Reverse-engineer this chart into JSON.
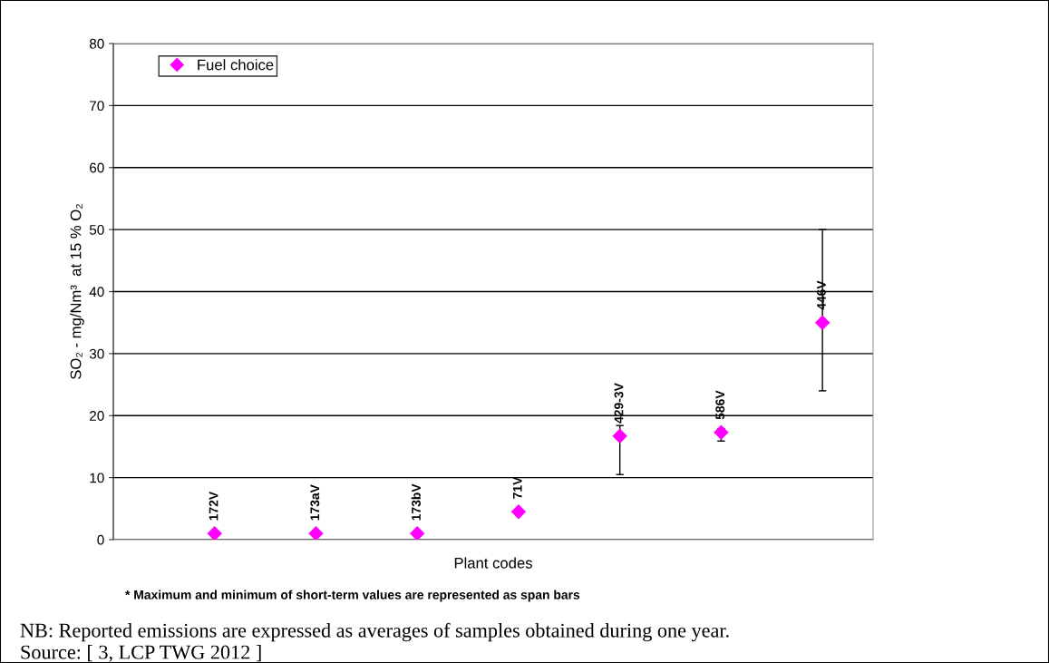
{
  "chart_data": {
    "type": "scatter",
    "ylabel": "SO₂ - mg/Nm³  at 15 % O₂",
    "xlabel": "Plant codes",
    "categories": [
      "172V",
      "173aV",
      "173bV",
      "71V",
      "429-3V",
      "586V",
      "446V"
    ],
    "series": [
      {
        "name": "Fuel choice",
        "color": "#ff00ff",
        "values": [
          1.0,
          1.0,
          1.0,
          4.5,
          16.7,
          17.3,
          35.0
        ],
        "errors": [
          null,
          null,
          null,
          null,
          [
            10.5,
            18.4
          ],
          [
            15.9,
            17.9
          ],
          [
            24.0,
            50.0
          ]
        ]
      }
    ],
    "marker": "diamond",
    "ylim": [
      0,
      80
    ],
    "yticks": [
      0,
      10,
      20,
      30,
      40,
      50,
      60,
      70,
      80
    ],
    "grid": "y",
    "legend": "top left",
    "annotations": [
      "* Maximum and minimum of short-term values are represented as span bars",
      "NB: Reported emissions are expressed as averages of samples obtained during one year.",
      "Source: [ 3, LCP TWG 2012 ]"
    ]
  }
}
